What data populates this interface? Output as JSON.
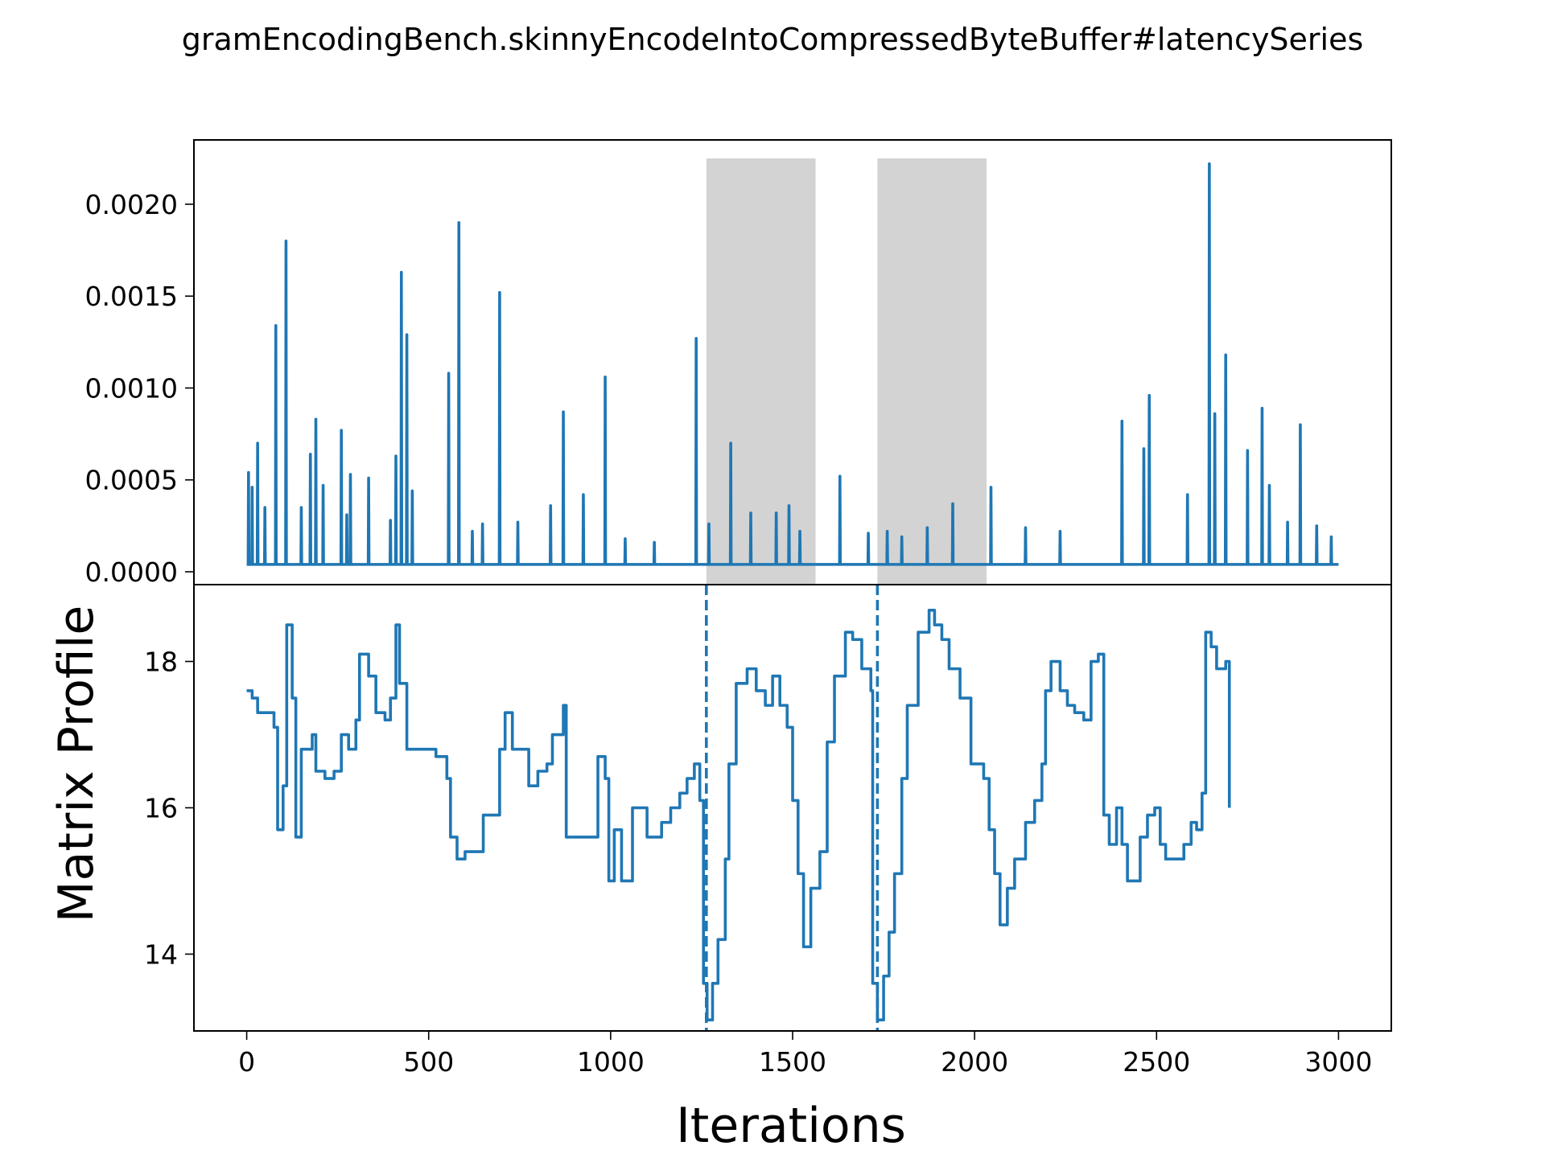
{
  "chart_data": {
    "type": "line",
    "title": "gramEncodingBench.skinnyEncodeIntoCompressedByteBuffer#latencySeries",
    "xlabel": "Iterations",
    "ylabel": "Matrix Profile",
    "xlim": [
      -145,
      3145
    ],
    "x_ticks": [
      0,
      500,
      1000,
      1500,
      2000,
      2500,
      3000
    ],
    "colors": {
      "line": "#1f77b4",
      "shade": "#d3d3d3",
      "frame": "#000000"
    },
    "panels": [
      {
        "name": "latency",
        "ylim": [
          -7e-05,
          0.00235
        ],
        "y_ticks": [
          "0.0000",
          "0.0005",
          "0.0010",
          "0.0015",
          "0.0020"
        ],
        "y_tick_values": [
          0,
          0.0005,
          0.001,
          0.0015,
          0.002
        ],
        "shaded_regions": [
          [
            1263,
            1563
          ],
          [
            1733,
            2033
          ]
        ],
        "baseline": 4e-05,
        "spikes": [
          [
            5,
            0.00054
          ],
          [
            15,
            0.00046
          ],
          [
            30,
            0.0007
          ],
          [
            50,
            0.00035
          ],
          [
            80,
            0.00134
          ],
          [
            108,
            0.0018
          ],
          [
            150,
            0.00035
          ],
          [
            175,
            0.00064
          ],
          [
            190,
            0.00083
          ],
          [
            210,
            0.00047
          ],
          [
            260,
            0.00077
          ],
          [
            275,
            0.00031
          ],
          [
            285,
            0.00053
          ],
          [
            335,
            0.00051
          ],
          [
            395,
            0.00028
          ],
          [
            410,
            0.00063
          ],
          [
            425,
            0.00163
          ],
          [
            440,
            0.00129
          ],
          [
            455,
            0.00044
          ],
          [
            555,
            0.00108
          ],
          [
            583,
            0.0019
          ],
          [
            620,
            0.00022
          ],
          [
            648,
            0.00026
          ],
          [
            695,
            0.00152
          ],
          [
            745,
            0.00027
          ],
          [
            835,
            0.00036
          ],
          [
            870,
            0.00087
          ],
          [
            925,
            0.00042
          ],
          [
            985,
            0.00106
          ],
          [
            1040,
            0.00018
          ],
          [
            1120,
            0.00016
          ],
          [
            1235,
            0.00127
          ],
          [
            1270,
            0.00026
          ],
          [
            1330,
            0.0007
          ],
          [
            1385,
            0.00032
          ],
          [
            1455,
            0.00032
          ],
          [
            1490,
            0.00036
          ],
          [
            1520,
            0.00022
          ],
          [
            1630,
            0.00052
          ],
          [
            1708,
            0.00021
          ],
          [
            1760,
            0.00022
          ],
          [
            1800,
            0.00019
          ],
          [
            1870,
            0.00024
          ],
          [
            1940,
            0.00037
          ],
          [
            2045,
            0.00046
          ],
          [
            2140,
            0.00024
          ],
          [
            2235,
            0.00022
          ],
          [
            2405,
            0.00082
          ],
          [
            2465,
            0.00067
          ],
          [
            2480,
            0.00096
          ],
          [
            2585,
            0.00042
          ],
          [
            2645,
            0.00222
          ],
          [
            2660,
            0.00086
          ],
          [
            2690,
            0.00118
          ],
          [
            2750,
            0.00066
          ],
          [
            2790,
            0.00089
          ],
          [
            2810,
            0.00047
          ],
          [
            2860,
            0.00027
          ],
          [
            2895,
            0.0008
          ],
          [
            2940,
            0.00025
          ],
          [
            2980,
            0.00019
          ]
        ]
      },
      {
        "name": "matrix-profile",
        "ylim": [
          12.95,
          19.05
        ],
        "y_ticks": [
          "14",
          "16",
          "18"
        ],
        "y_tick_values": [
          14,
          16,
          18
        ],
        "vlines": [
          1263,
          1733
        ],
        "points": [
          [
            0,
            17.6
          ],
          [
            15,
            17.5
          ],
          [
            30,
            17.3
          ],
          [
            50,
            17.3
          ],
          [
            75,
            17.1
          ],
          [
            85,
            15.7
          ],
          [
            100,
            16.3
          ],
          [
            110,
            18.5
          ],
          [
            125,
            17.5
          ],
          [
            135,
            15.6
          ],
          [
            150,
            16.8
          ],
          [
            180,
            17.0
          ],
          [
            190,
            16.5
          ],
          [
            215,
            16.4
          ],
          [
            240,
            16.5
          ],
          [
            260,
            17.0
          ],
          [
            280,
            16.8
          ],
          [
            300,
            17.2
          ],
          [
            310,
            18.1
          ],
          [
            335,
            17.8
          ],
          [
            355,
            17.3
          ],
          [
            380,
            17.2
          ],
          [
            395,
            17.5
          ],
          [
            410,
            18.5
          ],
          [
            420,
            17.7
          ],
          [
            440,
            16.8
          ],
          [
            480,
            16.8
          ],
          [
            520,
            16.7
          ],
          [
            550,
            16.4
          ],
          [
            560,
            15.6
          ],
          [
            578,
            15.3
          ],
          [
            600,
            15.4
          ],
          [
            625,
            15.4
          ],
          [
            650,
            15.9
          ],
          [
            695,
            16.8
          ],
          [
            710,
            17.3
          ],
          [
            730,
            16.8
          ],
          [
            760,
            16.8
          ],
          [
            775,
            16.3
          ],
          [
            800,
            16.5
          ],
          [
            825,
            16.6
          ],
          [
            840,
            17.0
          ],
          [
            870,
            17.4
          ],
          [
            878,
            15.6
          ],
          [
            900,
            15.6
          ],
          [
            935,
            15.6
          ],
          [
            965,
            16.7
          ],
          [
            985,
            16.4
          ],
          [
            995,
            15.0
          ],
          [
            1010,
            15.7
          ],
          [
            1030,
            15.0
          ],
          [
            1060,
            16.0
          ],
          [
            1080,
            16.0
          ],
          [
            1100,
            15.6
          ],
          [
            1140,
            15.8
          ],
          [
            1165,
            16.0
          ],
          [
            1190,
            16.2
          ],
          [
            1210,
            16.4
          ],
          [
            1230,
            16.6
          ],
          [
            1245,
            16.1
          ],
          [
            1255,
            13.6
          ],
          [
            1265,
            13.1
          ],
          [
            1280,
            13.6
          ],
          [
            1295,
            14.2
          ],
          [
            1315,
            15.3
          ],
          [
            1325,
            16.6
          ],
          [
            1345,
            17.7
          ],
          [
            1375,
            17.9
          ],
          [
            1400,
            17.6
          ],
          [
            1425,
            17.4
          ],
          [
            1445,
            17.8
          ],
          [
            1465,
            17.4
          ],
          [
            1485,
            17.1
          ],
          [
            1500,
            16.1
          ],
          [
            1515,
            15.1
          ],
          [
            1530,
            14.1
          ],
          [
            1550,
            14.9
          ],
          [
            1575,
            15.4
          ],
          [
            1595,
            16.9
          ],
          [
            1615,
            17.8
          ],
          [
            1630,
            17.8
          ],
          [
            1645,
            18.4
          ],
          [
            1665,
            18.3
          ],
          [
            1690,
            17.9
          ],
          [
            1715,
            17.6
          ],
          [
            1720,
            13.6
          ],
          [
            1733,
            13.1
          ],
          [
            1750,
            13.7
          ],
          [
            1765,
            14.3
          ],
          [
            1780,
            15.1
          ],
          [
            1800,
            16.4
          ],
          [
            1815,
            17.4
          ],
          [
            1845,
            18.4
          ],
          [
            1875,
            18.7
          ],
          [
            1890,
            18.5
          ],
          [
            1910,
            18.3
          ],
          [
            1930,
            17.9
          ],
          [
            1960,
            17.5
          ],
          [
            1990,
            16.6
          ],
          [
            2010,
            16.6
          ],
          [
            2025,
            16.4
          ],
          [
            2040,
            15.7
          ],
          [
            2055,
            15.1
          ],
          [
            2070,
            14.4
          ],
          [
            2090,
            14.9
          ],
          [
            2110,
            15.3
          ],
          [
            2140,
            15.8
          ],
          [
            2165,
            16.1
          ],
          [
            2185,
            16.6
          ],
          [
            2195,
            17.6
          ],
          [
            2210,
            18.0
          ],
          [
            2235,
            17.6
          ],
          [
            2255,
            17.4
          ],
          [
            2275,
            17.3
          ],
          [
            2300,
            17.2
          ],
          [
            2320,
            18.0
          ],
          [
            2340,
            18.1
          ],
          [
            2355,
            15.9
          ],
          [
            2370,
            15.5
          ],
          [
            2390,
            16.0
          ],
          [
            2405,
            15.5
          ],
          [
            2420,
            15.0
          ],
          [
            2440,
            15.0
          ],
          [
            2455,
            15.6
          ],
          [
            2475,
            15.9
          ],
          [
            2495,
            16.0
          ],
          [
            2510,
            15.5
          ],
          [
            2525,
            15.3
          ],
          [
            2550,
            15.3
          ],
          [
            2575,
            15.5
          ],
          [
            2595,
            15.8
          ],
          [
            2610,
            15.7
          ],
          [
            2625,
            16.2
          ],
          [
            2635,
            18.4
          ],
          [
            2650,
            18.2
          ],
          [
            2665,
            17.9
          ],
          [
            2690,
            18.0
          ],
          [
            2700,
            16.0
          ]
        ]
      }
    ]
  }
}
